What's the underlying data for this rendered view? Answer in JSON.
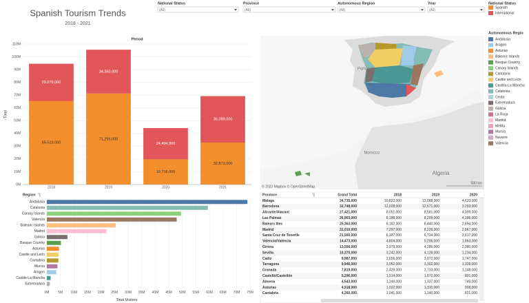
{
  "header": {
    "title": "Spanish Tourism Trends",
    "subtitle": "2018 - 2021"
  },
  "filters": [
    {
      "label": "National Status",
      "value": "(All)"
    },
    {
      "label": "Province",
      "value": "(All)"
    },
    {
      "label": "Autonomous Region",
      "value": "(All)"
    },
    {
      "label": "Year",
      "value": "(All)"
    }
  ],
  "chart_data": [
    {
      "type": "bar",
      "stacked": true,
      "title": "Period",
      "y_label": "Total",
      "legend_title": "National Status",
      "grid": true,
      "categories": [
        "2018",
        "2019",
        "2020",
        "2021"
      ],
      "series": [
        {
          "name": "Spanish",
          "color": "#f28e2b",
          "values": [
            65513000,
            71255000,
            19716000,
            32873000
          ],
          "value_labels": [
            "65,513,000",
            "71,255,000",
            "19,716,000",
            "32,873,000"
          ]
        },
        {
          "name": "International",
          "color": "#e15759",
          "values": [
            29079000,
            34350000,
            24494000,
            36399000
          ],
          "value_labels": [
            "29,079,000",
            "34,350,000",
            "24,494,000",
            "36,399,000"
          ]
        }
      ],
      "ylim": [
        0,
        110000000
      ],
      "yticks": [
        {
          "value": 0,
          "label": "0M"
        },
        {
          "value": 10000000,
          "label": "10M"
        },
        {
          "value": 20000000,
          "label": "20M"
        },
        {
          "value": 30000000,
          "label": "30M"
        },
        {
          "value": 40000000,
          "label": "40M"
        },
        {
          "value": 50000000,
          "label": "50M"
        },
        {
          "value": 60000000,
          "label": "60M"
        },
        {
          "value": 70000000,
          "label": "70M"
        },
        {
          "value": 80000000,
          "label": "80M"
        },
        {
          "value": 90000000,
          "label": "90M"
        },
        {
          "value": 100000000,
          "label": "100M"
        },
        {
          "value": 110000000,
          "label": "110M"
        }
      ]
    },
    {
      "type": "hbar",
      "title": "Region",
      "x_label": "Total Visitors",
      "grid": true,
      "categories": [
        "Andalusia",
        "Catalonia",
        "Canary Islands",
        "Valencia",
        "Balearic Islands",
        "Madrid",
        "Galicia",
        "Basque Country",
        "Asturias",
        "Castile and León",
        "Cantabria",
        "Murcia",
        "Aragon",
        "Castile-La Mancha",
        "Extremadura"
      ],
      "values": [
        74000000,
        59400000,
        49500000,
        47900000,
        25400000,
        22000000,
        7600000,
        5200000,
        4500000,
        4300000,
        4260000,
        3900000,
        3500000,
        1400000,
        1100000
      ],
      "colors": [
        "#4e79a7",
        "#86bcb6",
        "#8cd17d",
        "#9d7660",
        "#ffbe7d",
        "#fabfd2",
        "#79706e",
        "#59a14f",
        "#f28e2b",
        "#f1ce63",
        "#b6992d",
        "#b07aa1",
        "#a0cbe8",
        "#499894",
        "#bab0ac"
      ],
      "xlim": [
        0,
        77000000
      ],
      "xticks": [
        {
          "value": 0,
          "label": "0M"
        },
        {
          "value": 5000000,
          "label": "5M"
        },
        {
          "value": 10000000,
          "label": "10M"
        },
        {
          "value": 15000000,
          "label": "15M"
        },
        {
          "value": 20000000,
          "label": "20M"
        },
        {
          "value": 25000000,
          "label": "25M"
        },
        {
          "value": 30000000,
          "label": "30M"
        },
        {
          "value": 35000000,
          "label": "35M"
        },
        {
          "value": 40000000,
          "label": "40M"
        },
        {
          "value": 45000000,
          "label": "45M"
        },
        {
          "value": 50000000,
          "label": "50M"
        },
        {
          "value": 55000000,
          "label": "55M"
        },
        {
          "value": 60000000,
          "label": "60M"
        },
        {
          "value": 65000000,
          "label": "65M"
        },
        {
          "value": 70000000,
          "label": "70M"
        },
        {
          "value": 75000000,
          "label": "75M"
        }
      ]
    }
  ],
  "region_legend": {
    "title": "Autonomous Regio",
    "items": [
      {
        "name": "Andalusia",
        "color": "#4e79a7"
      },
      {
        "name": "Aragon",
        "color": "#a0cbe8"
      },
      {
        "name": "Asturias",
        "color": "#f28e2b"
      },
      {
        "name": "Balearic Islands",
        "color": "#ffbe7d"
      },
      {
        "name": "Basque Country",
        "color": "#59a14f"
      },
      {
        "name": "Canary Islands",
        "color": "#8cd17d"
      },
      {
        "name": "Cantabria",
        "color": "#b6992d"
      },
      {
        "name": "Castile and León",
        "color": "#f1ce63"
      },
      {
        "name": "Castilla-La Mancha",
        "color": "#499894"
      },
      {
        "name": "Catalonia",
        "color": "#86bcb6"
      },
      {
        "name": "Ceuta",
        "color": "#a8d5d0"
      },
      {
        "name": "Extremadura",
        "color": "#79706e"
      },
      {
        "name": "Galicia",
        "color": "#bab0ac"
      },
      {
        "name": "La Rioja",
        "color": "#d37295"
      },
      {
        "name": "Madrid",
        "color": "#fabfd2"
      },
      {
        "name": "Melilla",
        "color": "#e8a0c0"
      },
      {
        "name": "Murcia",
        "color": "#b07aa1"
      },
      {
        "name": "Navarre",
        "color": "#d4a6c8"
      },
      {
        "name": "Valencia",
        "color": "#9d7660"
      }
    ]
  },
  "map": {
    "labels": [
      "Portugal",
      "Morocco",
      "Algeria"
    ],
    "attribution": "© 2023 Mapbox © OpenStreetMap",
    "scale": "500 km"
  },
  "table": {
    "columns": [
      "Province",
      "Grand Total",
      "2018",
      "2019",
      "2020"
    ],
    "rows": [
      [
        "Málaga",
        "34,735,000",
        "10,822,000",
        "12,088,000",
        "4,633,000"
      ],
      [
        "Barcelona",
        "32,748,000",
        "12,028,000",
        "12,671,000",
        "3,293,000"
      ],
      [
        "Alicante/Alacant",
        "27,421,000",
        "8,051,000",
        "8,581,000",
        "4,009,000"
      ],
      [
        "Las Palmas",
        "26,903,000",
        "8,188,000",
        "8,209,000",
        "4,396,000"
      ],
      [
        "Balears Illes",
        "25,363,000",
        "8,182,000",
        "8,440,000",
        "2,694,000"
      ],
      [
        "Madrid",
        "22,010,000",
        "7,297,000",
        "8,226,000",
        "2,867,000"
      ],
      [
        "Santa Cruz de Tenerife",
        "21,560,000",
        "6,187,000",
        "6,734,000",
        "3,617,000"
      ],
      [
        "Valencia/València",
        "14,473,000",
        "4,804,000",
        "5,206,000",
        "1,863,000"
      ],
      [
        "Girona",
        "13,556,000",
        "3,979,000",
        "4,286,000",
        "2,080,000"
      ],
      [
        "Sevilla",
        "10,370,000",
        "3,242,000",
        "4,128,000",
        "1,234,000"
      ],
      [
        "Cádiz",
        "9,987,000",
        "2,656,000",
        "3,072,000",
        "1,747,000"
      ],
      [
        "Tarragona",
        "9,946,000",
        "3,052,000",
        "3,302,000",
        "1,328,000"
      ],
      [
        "Granada",
        "7,819,000",
        "2,429,000",
        "2,733,000",
        "1,148,000"
      ],
      [
        "Castelló/Castellón",
        "5,296,000",
        "1,514,000",
        "1,672,000",
        "801,000"
      ],
      [
        "Almería",
        "4,543,000",
        "1,249,000",
        "1,337,000",
        "749,000"
      ],
      [
        "Asturias",
        "4,518,000",
        "1,022,000",
        "1,310,000",
        "908,000"
      ],
      [
        "Cantabria",
        "4,260,000",
        "1,041,000",
        "1,240,000",
        "821,000"
      ]
    ]
  }
}
